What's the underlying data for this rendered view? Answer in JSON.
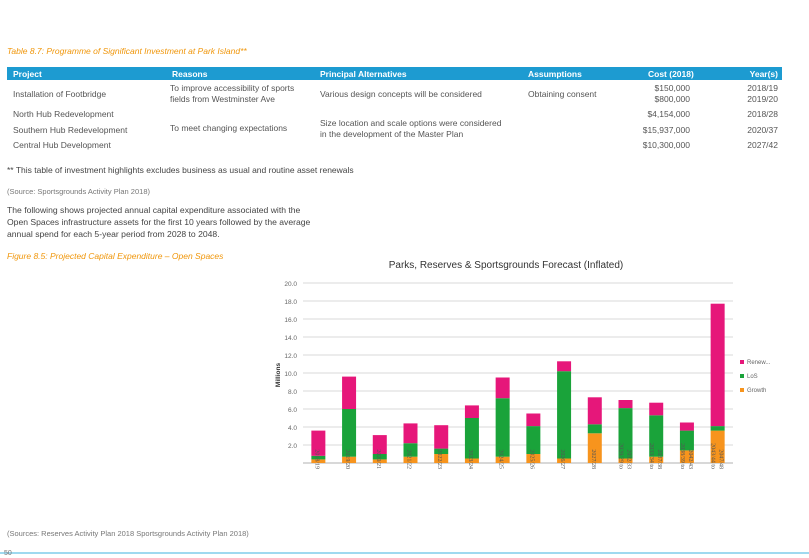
{
  "table": {
    "caption": "Table 8.7: Programme of Significant Investment at Park Island**",
    "headers": [
      "Project",
      "Reasons",
      "Principal Alternatives",
      "Assumptions",
      "Cost (2018)",
      "Year(s)"
    ],
    "rows": [
      {
        "project": "Installation of Footbridge",
        "reason_line1": "To improve accessibility of sports",
        "reason_line2": "fields from Westminster Ave",
        "alternatives": "Various design concepts will be considered",
        "assumptions": "Obtaining consent",
        "cost_line1": "$150,000",
        "cost_line2": "$800,000",
        "year_line1": "2018/19",
        "year_line2": "2019/20"
      },
      {
        "project": "North Hub Redevelopment",
        "cost": "$4,154,000",
        "year": "2018/28"
      },
      {
        "project": "Southern Hub Redevelopment",
        "reason": "To meet changing expectations",
        "alternatives_line1": "Size location and scale options were considered",
        "alternatives_line2": "in the development of the Master Plan",
        "cost": "$15,937,000",
        "year": "2020/37"
      },
      {
        "project": "Central Hub Development",
        "cost": "$10,300,000",
        "year": "2027/42"
      }
    ],
    "note": "** This table of investment highlights excludes business as usual and routine asset renewals",
    "source": "(Source: Sportsgrounds Activity Plan 2018)"
  },
  "paragraph": {
    "line1": "The following shows projected annual capital expenditure associated with the",
    "line2": "Open Spaces infrastructure assets for the first 10 years followed by the average",
    "line3": "annual spend for each 5-year period from 2028 to 2048."
  },
  "figure_caption": "Figure 8.5: Projected Capital Expenditure – Open Spaces",
  "sources_footer": "(Sources: Reserves Activity Plan 2018 Sportsgrounds Activity Plan 2018)",
  "page_number": "50",
  "colors": {
    "accent": "#1d9bd1",
    "caption": "#f0960a",
    "renewals": "#e6177a",
    "los": "#1aa33a",
    "growth": "#f7941d"
  },
  "chart_data": {
    "type": "bar",
    "stacked": true,
    "title": "Parks, Reserves & Sportsgrounds Forecast (Inflated)",
    "ylabel": "Millions",
    "ylim": [
      0,
      20
    ],
    "yticks": [
      "2.0",
      "4.0",
      "6.0",
      "8.0",
      "10.0",
      "12.0",
      "14.0",
      "16.0",
      "18.0",
      "20.0"
    ],
    "grid": true,
    "legend_position": "right",
    "categories": [
      "2018/19",
      "2019/20",
      "2020/21",
      "2021/22",
      "2022/23",
      "2023/24",
      "2024/25",
      "2025/26",
      "2026/27",
      "2027/28",
      "2028/29 to 2032/33",
      "2033/34 to 2037/38",
      "2038/39 to 2042/43",
      "2043/44 to 2047/48"
    ],
    "series": [
      {
        "name": "Growth",
        "values": [
          0.4,
          0.7,
          0.4,
          0.7,
          1.0,
          0.5,
          0.7,
          1.0,
          0.5,
          3.3,
          0.5,
          0.7,
          1.4,
          3.6
        ]
      },
      {
        "name": "LoS",
        "values": [
          0.4,
          5.3,
          0.6,
          1.5,
          0.6,
          4.5,
          6.5,
          3.1,
          9.7,
          1.0,
          5.6,
          4.6,
          2.2,
          0.5
        ]
      },
      {
        "name": "Renewals",
        "values": [
          2.8,
          3.6,
          2.1,
          2.2,
          2.6,
          1.4,
          2.3,
          1.4,
          1.1,
          3.0,
          0.9,
          1.4,
          0.9,
          13.6
        ]
      }
    ],
    "legend_labels": [
      "Renew...",
      "LoS",
      "Growth"
    ]
  }
}
